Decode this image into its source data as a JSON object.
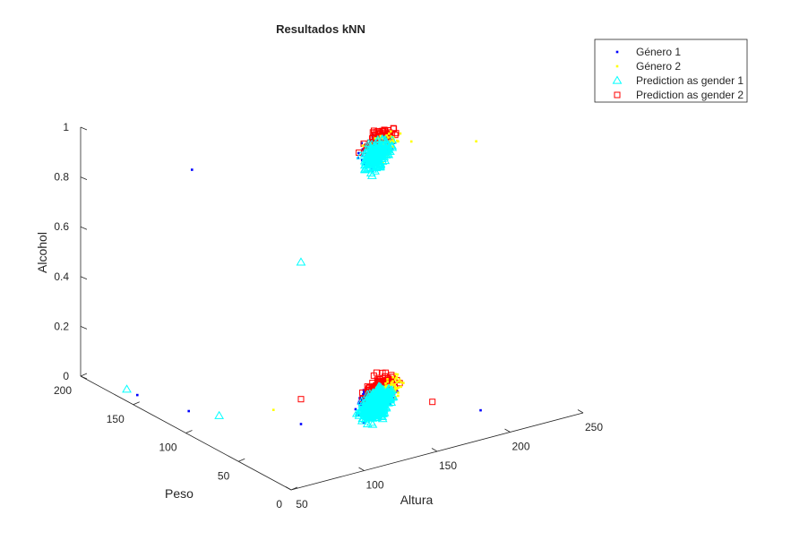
{
  "chart_data": {
    "type": "scatter3d",
    "title": "Resultados kNN",
    "axes": {
      "x": {
        "label": "Altura",
        "lim": [
          50,
          250
        ],
        "ticks": [
          50,
          100,
          150,
          200,
          250
        ]
      },
      "y": {
        "label": "Peso",
        "lim": [
          0,
          200
        ],
        "ticks": [
          0,
          50,
          100,
          150,
          200
        ]
      },
      "z": {
        "label": "Alcohol",
        "lim": [
          0,
          1
        ],
        "ticks": [
          0,
          0.2,
          0.4,
          0.6,
          0.8,
          1
        ]
      }
    },
    "grid": false,
    "legend_position": "top-right",
    "series": [
      {
        "name": "Género 1",
        "marker": "point",
        "color": "#0000ff",
        "note": "dense clusters around z=0 and z=1; isolated points listed",
        "clusters": [
          {
            "z": 0,
            "x_range": [
              140,
              190
            ],
            "y_range": [
              50,
              110
            ],
            "count": 400
          },
          {
            "z": 1,
            "x_range": [
              140,
              190
            ],
            "y_range": [
              50,
              110
            ],
            "count": 120
          }
        ],
        "points": [
          [
            205,
            35,
            0
          ],
          [
            60,
            160,
            0
          ],
          [
            70,
            125,
            0
          ],
          [
            65,
            115,
            1
          ],
          [
            100,
            60,
            0.05
          ]
        ]
      },
      {
        "name": "Género 2",
        "marker": "point",
        "color": "#ffff00",
        "clusters": [
          {
            "z": 0,
            "x_range": [
              150,
              200
            ],
            "y_range": [
              60,
              110
            ],
            "count": 160
          },
          {
            "z": 1,
            "x_range": [
              150,
              200
            ],
            "y_range": [
              60,
              110
            ],
            "count": 80
          }
        ],
        "points": [
          [
            220,
            60,
            1
          ],
          [
            110,
            100,
            0
          ],
          [
            190,
            80,
            1
          ]
        ]
      },
      {
        "name": "Prediction as gender 1",
        "marker": "triangle",
        "color": "#00ffff",
        "clusters": [
          {
            "z": 0,
            "x_range": [
              140,
              185
            ],
            "y_range": [
              50,
              100
            ],
            "count": 500
          },
          {
            "z": 1,
            "x_range": [
              140,
              185
            ],
            "y_range": [
              50,
              100
            ],
            "count": 200
          }
        ],
        "points": [
          [
            60,
            170,
            0
          ],
          [
            100,
            60,
            0.7
          ],
          [
            80,
            110,
            0
          ]
        ]
      },
      {
        "name": "Prediction as gender 2",
        "marker": "square",
        "color": "#ff0000",
        "clusters": [
          {
            "z": 0,
            "x_range": [
              155,
              200
            ],
            "y_range": [
              70,
              115
            ],
            "count": 150
          },
          {
            "z": 1,
            "x_range": [
              155,
              200
            ],
            "y_range": [
              70,
              115
            ],
            "count": 80
          }
        ],
        "points": [
          [
            190,
            60,
            0
          ],
          [
            100,
            60,
            0.15
          ]
        ]
      }
    ]
  }
}
